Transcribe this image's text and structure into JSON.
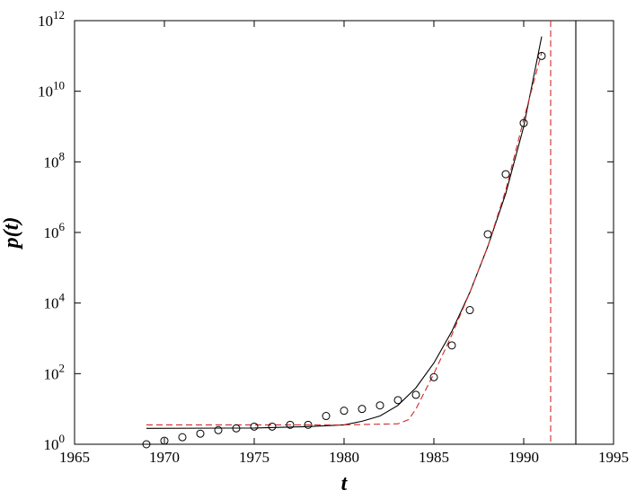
{
  "chart_data": {
    "type": "scatter",
    "title": "",
    "xlabel": "t",
    "ylabel": "p(t)",
    "xlim": [
      1965,
      1995
    ],
    "ylim_log10": [
      0,
      12
    ],
    "y_scale": "log",
    "grid": false,
    "x_ticks": [
      1965,
      1970,
      1975,
      1980,
      1985,
      1990,
      1995
    ],
    "x_tick_labels": [
      "1965",
      "1970",
      "1975",
      "1980",
      "1985",
      "1990",
      "1995"
    ],
    "y_ticks_log10": [
      0,
      2,
      4,
      6,
      8,
      10,
      12
    ],
    "y_tick_base": "10",
    "y_tick_exponents": [
      "0",
      "2",
      "4",
      "6",
      "8",
      "10",
      "12"
    ],
    "observations": {
      "marker": "open-circle",
      "color": "#000000",
      "points": [
        {
          "t": 1969,
          "log10_p": 0.0
        },
        {
          "t": 1970,
          "log10_p": 0.1
        },
        {
          "t": 1971,
          "log10_p": 0.2
        },
        {
          "t": 1972,
          "log10_p": 0.3
        },
        {
          "t": 1973,
          "log10_p": 0.4
        },
        {
          "t": 1974,
          "log10_p": 0.45
        },
        {
          "t": 1975,
          "log10_p": 0.5
        },
        {
          "t": 1976,
          "log10_p": 0.5
        },
        {
          "t": 1977,
          "log10_p": 0.55
        },
        {
          "t": 1978,
          "log10_p": 0.55
        },
        {
          "t": 1979,
          "log10_p": 0.8
        },
        {
          "t": 1980,
          "log10_p": 0.95
        },
        {
          "t": 1981,
          "log10_p": 1.0
        },
        {
          "t": 1982,
          "log10_p": 1.1
        },
        {
          "t": 1983,
          "log10_p": 1.25
        },
        {
          "t": 1984,
          "log10_p": 1.4
        },
        {
          "t": 1985,
          "log10_p": 1.9
        },
        {
          "t": 1986,
          "log10_p": 2.8
        },
        {
          "t": 1987,
          "log10_p": 3.8
        },
        {
          "t": 1988,
          "log10_p": 5.95
        },
        {
          "t": 1989,
          "log10_p": 7.65
        },
        {
          "t": 1990,
          "log10_p": 9.1
        },
        {
          "t": 1991,
          "log10_p": 11.0
        }
      ]
    },
    "fit_solid": {
      "style": "solid",
      "color": "#000000",
      "points": [
        {
          "t": 1969,
          "log10_p": 0.45
        },
        {
          "t": 1975,
          "log10_p": 0.46
        },
        {
          "t": 1978,
          "log10_p": 0.5
        },
        {
          "t": 1980,
          "log10_p": 0.55
        },
        {
          "t": 1981,
          "log10_p": 0.65
        },
        {
          "t": 1982,
          "log10_p": 0.8
        },
        {
          "t": 1983,
          "log10_p": 1.1
        },
        {
          "t": 1984,
          "log10_p": 1.6
        },
        {
          "t": 1985,
          "log10_p": 2.3
        },
        {
          "t": 1986,
          "log10_p": 3.2
        },
        {
          "t": 1987,
          "log10_p": 4.3
        },
        {
          "t": 1988,
          "log10_p": 5.6
        },
        {
          "t": 1989,
          "log10_p": 7.1
        },
        {
          "t": 1990,
          "log10_p": 9.0
        },
        {
          "t": 1991,
          "log10_p": 11.55
        }
      ],
      "singularity_t": 1992.9
    },
    "fit_dashed": {
      "style": "dashed",
      "color": "#d62728",
      "points": [
        {
          "t": 1969,
          "log10_p": 0.55
        },
        {
          "t": 1975,
          "log10_p": 0.55
        },
        {
          "t": 1980,
          "log10_p": 0.55
        },
        {
          "t": 1983,
          "log10_p": 0.58
        },
        {
          "t": 1983.6,
          "log10_p": 0.7
        },
        {
          "t": 1984,
          "log10_p": 1.0
        },
        {
          "t": 1984.5,
          "log10_p": 1.5
        },
        {
          "t": 1985,
          "log10_p": 2.0
        },
        {
          "t": 1986,
          "log10_p": 3.1
        },
        {
          "t": 1987,
          "log10_p": 4.3
        },
        {
          "t": 1988,
          "log10_p": 5.6
        },
        {
          "t": 1989,
          "log10_p": 7.2
        },
        {
          "t": 1990,
          "log10_p": 9.2
        },
        {
          "t": 1991,
          "log10_p": 11.1
        }
      ],
      "singularity_t": 1991.5
    }
  }
}
